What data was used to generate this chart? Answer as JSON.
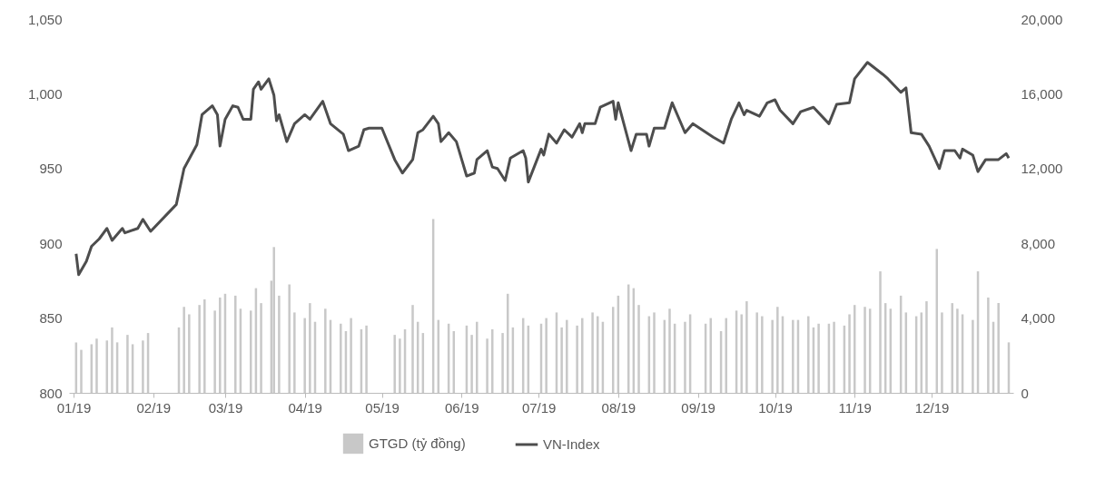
{
  "chart_data": {
    "type": "bar",
    "xlim": [
      "2019-01-01",
      "2019-12-31"
    ],
    "xticks": [
      {
        "value": "2019-01-01",
        "label": "01/19"
      },
      {
        "value": "2019-02-01",
        "label": "02/19"
      },
      {
        "value": "2019-03-01",
        "label": "03/19"
      },
      {
        "value": "2019-04-01",
        "label": "04/19"
      },
      {
        "value": "2019-05-01",
        "label": "05/19"
      },
      {
        "value": "2019-06-01",
        "label": "06/19"
      },
      {
        "value": "2019-07-01",
        "label": "07/19"
      },
      {
        "value": "2019-08-01",
        "label": "08/19"
      },
      {
        "value": "2019-09-01",
        "label": "09/19"
      },
      {
        "value": "2019-10-01",
        "label": "10/19"
      },
      {
        "value": "2019-11-01",
        "label": "11/19"
      },
      {
        "value": "2019-12-01",
        "label": "12/19"
      }
    ],
    "ylim": [
      800,
      1050
    ],
    "yticks": [
      {
        "value": 800,
        "label": "800"
      },
      {
        "value": 850,
        "label": "850"
      },
      {
        "value": 900,
        "label": "900"
      },
      {
        "value": 950,
        "label": "950"
      },
      {
        "value": 1000,
        "label": "1,000"
      },
      {
        "value": 1050,
        "label": "1,050"
      }
    ],
    "y2lim": [
      0,
      20000
    ],
    "y2ticks": [
      {
        "value": 0,
        "label": "0"
      },
      {
        "value": 4000,
        "label": "4,000"
      },
      {
        "value": 8000,
        "label": "8,000"
      },
      {
        "value": 12000,
        "label": "12,000"
      },
      {
        "value": 16000,
        "label": "16,000"
      },
      {
        "value": 20000,
        "label": "20,000"
      }
    ],
    "grid": false,
    "legend": "bottom",
    "series": [
      {
        "name": "GTGD (tỷ đồng)",
        "axis": "y2",
        "color": "#c8c8c8",
        "x": [
          "2019-01-02",
          "2019-01-04",
          "2019-01-08",
          "2019-01-10",
          "2019-01-14",
          "2019-01-16",
          "2019-01-18",
          "2019-01-22",
          "2019-01-24",
          "2019-01-28",
          "2019-01-30",
          "2019-02-11",
          "2019-02-13",
          "2019-02-15",
          "2019-02-19",
          "2019-02-21",
          "2019-02-25",
          "2019-02-27",
          "2019-03-01",
          "2019-03-05",
          "2019-03-07",
          "2019-03-11",
          "2019-03-13",
          "2019-03-15",
          "2019-03-19",
          "2019-03-20",
          "2019-03-22",
          "2019-03-26",
          "2019-03-28",
          "2019-04-01",
          "2019-04-03",
          "2019-04-05",
          "2019-04-09",
          "2019-04-11",
          "2019-04-15",
          "2019-04-17",
          "2019-04-19",
          "2019-04-23",
          "2019-04-25",
          "2019-05-06",
          "2019-05-08",
          "2019-05-10",
          "2019-05-13",
          "2019-05-15",
          "2019-05-17",
          "2019-05-21",
          "2019-05-23",
          "2019-05-27",
          "2019-05-29",
          "2019-06-03",
          "2019-06-05",
          "2019-06-07",
          "2019-06-11",
          "2019-06-13",
          "2019-06-17",
          "2019-06-19",
          "2019-06-21",
          "2019-06-25",
          "2019-06-27",
          "2019-07-02",
          "2019-07-04",
          "2019-07-08",
          "2019-07-10",
          "2019-07-12",
          "2019-07-16",
          "2019-07-18",
          "2019-07-22",
          "2019-07-24",
          "2019-07-26",
          "2019-07-30",
          "2019-08-01",
          "2019-08-05",
          "2019-08-07",
          "2019-08-09",
          "2019-08-13",
          "2019-08-15",
          "2019-08-19",
          "2019-08-21",
          "2019-08-23",
          "2019-08-27",
          "2019-08-29",
          "2019-09-04",
          "2019-09-06",
          "2019-09-10",
          "2019-09-12",
          "2019-09-16",
          "2019-09-18",
          "2019-09-20",
          "2019-09-24",
          "2019-09-26",
          "2019-09-30",
          "2019-10-02",
          "2019-10-04",
          "2019-10-08",
          "2019-10-10",
          "2019-10-14",
          "2019-10-16",
          "2019-10-18",
          "2019-10-22",
          "2019-10-24",
          "2019-10-28",
          "2019-10-30",
          "2019-11-01",
          "2019-11-05",
          "2019-11-07",
          "2019-11-11",
          "2019-11-13",
          "2019-11-15",
          "2019-11-19",
          "2019-11-21",
          "2019-11-25",
          "2019-11-27",
          "2019-11-29",
          "2019-12-03",
          "2019-12-05",
          "2019-12-09",
          "2019-12-11",
          "2019-12-13",
          "2019-12-17",
          "2019-12-19",
          "2019-12-23",
          "2019-12-25",
          "2019-12-27",
          "2019-12-31"
        ],
        "values": [
          2700,
          2300,
          2600,
          2900,
          2800,
          3500,
          2700,
          3100,
          2600,
          2800,
          3200,
          3500,
          4600,
          4200,
          4700,
          5000,
          4400,
          5100,
          5300,
          5200,
          4500,
          4400,
          5600,
          4800,
          6000,
          7800,
          5200,
          5800,
          4300,
          4000,
          4800,
          3800,
          4500,
          3900,
          3700,
          3300,
          4000,
          3400,
          3600,
          3100,
          2900,
          3400,
          4700,
          3800,
          3200,
          9300,
          3900,
          3700,
          3300,
          3600,
          3100,
          3800,
          2900,
          3400,
          3200,
          5300,
          3500,
          4000,
          3600,
          3700,
          4000,
          4300,
          3500,
          3900,
          3600,
          4000,
          4300,
          4100,
          3800,
          4600,
          5200,
          5800,
          5600,
          4700,
          4100,
          4300,
          3900,
          4500,
          3700,
          3800,
          4200,
          3700,
          4000,
          3300,
          4000,
          4400,
          4200,
          4900,
          4300,
          4100,
          3900,
          4600,
          4100,
          3900,
          3900,
          4100,
          3500,
          3700,
          3700,
          3800,
          3600,
          4200,
          4700,
          4600,
          4500,
          6500,
          4800,
          4500,
          5200,
          4300,
          4100,
          4300,
          4900,
          7700,
          4300,
          4800,
          4500,
          4200,
          3900,
          6500,
          5100,
          3800,
          4800,
          2700
        ]
      },
      {
        "name": "VN-Index",
        "type": "line",
        "axis": "y",
        "color": "#4d4d4d",
        "line_style": "solid",
        "marker": "none",
        "x": [
          "2019-01-02",
          "2019-01-03",
          "2019-01-06",
          "2019-01-08",
          "2019-01-11",
          "2019-01-14",
          "2019-01-16",
          "2019-01-20",
          "2019-01-21",
          "2019-01-26",
          "2019-01-28",
          "2019-01-31",
          "2019-02-10",
          "2019-02-13",
          "2019-02-18",
          "2019-02-20",
          "2019-02-24",
          "2019-02-26",
          "2019-02-27",
          "2019-03-01",
          "2019-03-04",
          "2019-03-06",
          "2019-03-08",
          "2019-03-11",
          "2019-03-12",
          "2019-03-14",
          "2019-03-15",
          "2019-03-18",
          "2019-03-20",
          "2019-03-21",
          "2019-03-22",
          "2019-03-25",
          "2019-03-28",
          "2019-04-01",
          "2019-04-03",
          "2019-04-08",
          "2019-04-11",
          "2019-04-16",
          "2019-04-18",
          "2019-04-22",
          "2019-04-24",
          "2019-04-26",
          "2019-05-01",
          "2019-05-06",
          "2019-05-09",
          "2019-05-13",
          "2019-05-15",
          "2019-05-17",
          "2019-05-21",
          "2019-05-23",
          "2019-05-24",
          "2019-05-27",
          "2019-05-30",
          "2019-06-03",
          "2019-06-06",
          "2019-06-07",
          "2019-06-11",
          "2019-06-13",
          "2019-06-15",
          "2019-06-18",
          "2019-06-20",
          "2019-06-25",
          "2019-06-26",
          "2019-06-27",
          "2019-07-02",
          "2019-07-03",
          "2019-07-05",
          "2019-07-08",
          "2019-07-11",
          "2019-07-14",
          "2019-07-17",
          "2019-07-18",
          "2019-07-19",
          "2019-07-23",
          "2019-07-25",
          "2019-07-30",
          "2019-07-31",
          "2019-08-01",
          "2019-08-06",
          "2019-08-08",
          "2019-08-12",
          "2019-08-13",
          "2019-08-15",
          "2019-08-19",
          "2019-08-22",
          "2019-08-27",
          "2019-08-30",
          "2019-09-07",
          "2019-09-11",
          "2019-09-14",
          "2019-09-17",
          "2019-09-19",
          "2019-09-20",
          "2019-09-25",
          "2019-09-28",
          "2019-10-01",
          "2019-10-03",
          "2019-10-08",
          "2019-10-11",
          "2019-10-16",
          "2019-10-22",
          "2019-10-25",
          "2019-10-30",
          "2019-11-01",
          "2019-11-06",
          "2019-11-12",
          "2019-11-14",
          "2019-11-19",
          "2019-11-21",
          "2019-11-23",
          "2019-11-27",
          "2019-11-30",
          "2019-12-04",
          "2019-12-06",
          "2019-12-10",
          "2019-12-12",
          "2019-12-13",
          "2019-12-17",
          "2019-12-19",
          "2019-12-22",
          "2019-12-27",
          "2019-12-30",
          "2019-12-31"
        ],
        "values": [
          893,
          879,
          888,
          898,
          903,
          910,
          902,
          910,
          907,
          910,
          916,
          908,
          926,
          950,
          966,
          986,
          992,
          986,
          965,
          983,
          992,
          991,
          983,
          983,
          1003,
          1008,
          1003,
          1010,
          999,
          982,
          986,
          968,
          980,
          986,
          983,
          995,
          980,
          973,
          962,
          965,
          976,
          977,
          977,
          956,
          947,
          956,
          974,
          976,
          985,
          980,
          968,
          974,
          968,
          945,
          947,
          956,
          962,
          951,
          950,
          942,
          957,
          962,
          957,
          941,
          963,
          959,
          973,
          967,
          976,
          971,
          980,
          974,
          980,
          980,
          991,
          995,
          983,
          994,
          962,
          973,
          973,
          965,
          977,
          977,
          994,
          974,
          980,
          971,
          967,
          983,
          994,
          986,
          989,
          985,
          994,
          996,
          989,
          980,
          988,
          991,
          980,
          993,
          994,
          1010,
          1021,
          1013,
          1010,
          1001,
          1004,
          974,
          973,
          965,
          950,
          962,
          962,
          957,
          963,
          959,
          948,
          956,
          956,
          960,
          957
        ]
      }
    ]
  }
}
